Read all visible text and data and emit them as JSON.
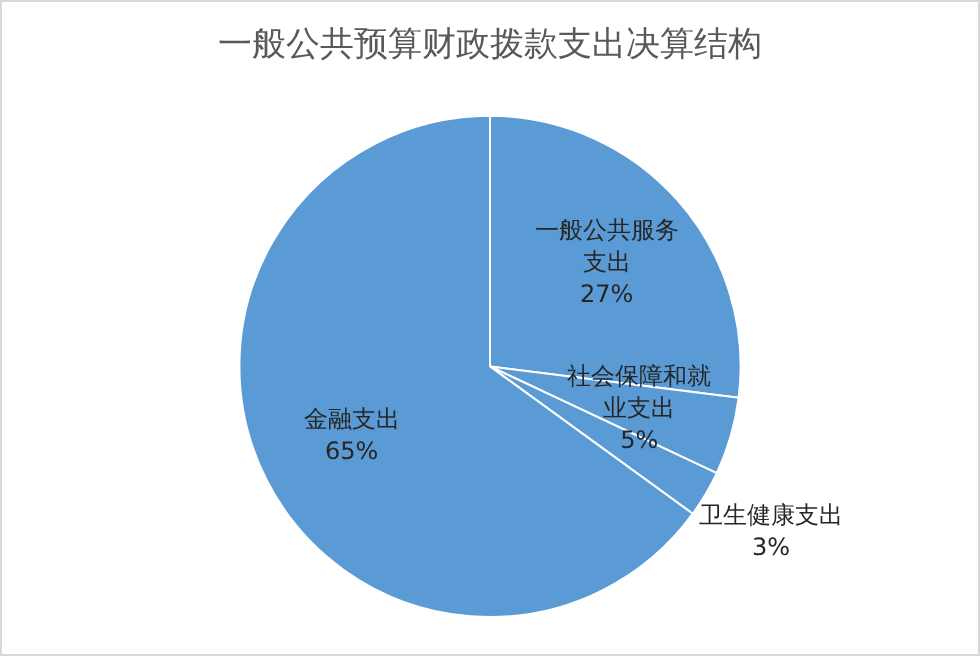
{
  "chart_data": {
    "type": "pie",
    "title": "一般公共预算财政拨款支出决算结构",
    "categories": [
      "一般公共服务支出",
      "社会保障和就业支出",
      "卫生健康支出",
      "金融支出"
    ],
    "values": [
      27,
      5,
      3,
      65
    ],
    "value_labels": [
      "27%",
      "5%",
      "3%",
      "65%"
    ],
    "colors": [
      "#5b9bd5",
      "#5b9bd5",
      "#5b9bd5",
      "#5b9bd5"
    ],
    "legend": false
  }
}
